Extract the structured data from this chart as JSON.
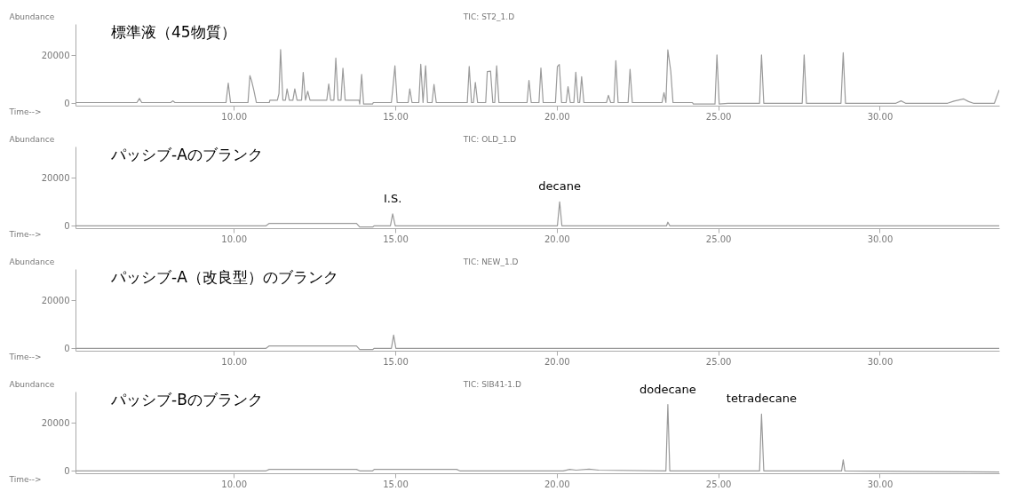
{
  "chart_data": [
    {
      "type": "line",
      "title": "標準液（45物質）",
      "subtitle": "TIC: ST2_1.D",
      "xlabel": "Time-->",
      "ylabel": "Abundance",
      "series": [
        {
          "color": "#9a9a9a",
          "x": [
            5.1,
            7.0,
            7.08,
            7.15,
            8.05,
            8.11,
            8.18,
            9.76,
            9.83,
            9.9,
            10.44,
            10.5,
            10.55,
            10.62,
            10.7,
            11.1,
            11.12,
            11.35,
            11.4,
            11.45,
            11.52,
            11.6,
            11.65,
            11.72,
            11.83,
            11.89,
            11.96,
            12.1,
            12.15,
            12.22,
            12.29,
            12.36,
            12.88,
            12.94,
            13.0,
            13.1,
            13.16,
            13.23,
            13.32,
            13.38,
            13.45,
            13.88,
            13.9,
            13.96,
            14.02,
            14.3,
            14.32,
            14.88,
            14.92,
            14.99,
            15.06,
            15.4,
            15.45,
            15.52,
            15.73,
            15.79,
            15.86,
            15.94,
            16.0,
            16.14,
            16.2,
            16.27,
            17.23,
            17.29,
            17.36,
            17.42,
            17.48,
            17.55,
            17.8,
            17.85,
            17.95,
            18.02,
            18.08,
            18.14,
            18.21,
            19.08,
            19.14,
            19.21,
            19.45,
            19.51,
            19.58,
            19.96,
            20.02,
            20.08,
            20.15,
            20.29,
            20.35,
            20.42,
            20.53,
            20.59,
            20.66,
            20.71,
            20.77,
            20.84,
            21.54,
            21.6,
            21.67,
            21.77,
            21.83,
            21.9,
            22.21,
            22.27,
            22.34,
            23.26,
            23.32,
            23.38,
            23.44,
            23.53,
            23.6,
            24.2,
            24.23,
            24.9,
            24.96,
            25.03,
            25.3,
            26.28,
            26.34,
            26.41,
            27.6,
            27.66,
            27.73,
            28.8,
            28.87,
            28.94,
            30.5,
            30.66,
            30.8,
            32.1,
            32.3,
            32.6,
            32.75,
            32.9,
            33.55,
            33.7
          ],
          "values": [
            300,
            300,
            2000,
            300,
            300,
            1000,
            300,
            300,
            8400,
            300,
            300,
            11500,
            9500,
            5500,
            300,
            300,
            1300,
            1300,
            4000,
            22300,
            1300,
            1300,
            6000,
            1300,
            1300,
            6000,
            1300,
            1300,
            12800,
            1300,
            5000,
            1300,
            1300,
            8000,
            1300,
            1300,
            18800,
            1300,
            1300,
            14600,
            1300,
            1300,
            -300,
            12000,
            -300,
            -300,
            300,
            300,
            5500,
            15600,
            300,
            300,
            6000,
            300,
            300,
            16200,
            300,
            15600,
            300,
            300,
            7800,
            300,
            300,
            15300,
            300,
            300,
            8700,
            300,
            300,
            13200,
            13400,
            300,
            300,
            15600,
            300,
            300,
            9500,
            300,
            300,
            14700,
            300,
            300,
            15300,
            16100,
            300,
            300,
            6900,
            300,
            300,
            12900,
            300,
            300,
            11100,
            300,
            300,
            3300,
            300,
            300,
            17700,
            300,
            300,
            14100,
            300,
            300,
            4400,
            300,
            22200,
            13400,
            300,
            300,
            -300,
            -300,
            20100,
            -300,
            0,
            0,
            20100,
            0,
            0,
            20100,
            0,
            0,
            21000,
            0,
            0,
            1000,
            0,
            0,
            900,
            1800,
            700,
            0,
            0,
            5600
          ]
        }
      ],
      "xlim": [
        5.1,
        33.7
      ],
      "ylim": [
        -1000,
        33000
      ],
      "yticks": [
        0,
        20000
      ],
      "xticks": [
        {
          "value": 10,
          "label": "10.00"
        },
        {
          "value": 15,
          "label": "15.00"
        },
        {
          "value": 20,
          "label": "20.00"
        },
        {
          "value": 25,
          "label": "25.00"
        },
        {
          "value": 30,
          "label": "30.00"
        }
      ]
    },
    {
      "type": "line",
      "title": "パッシブ-Aのブランク",
      "subtitle": "TIC: OLD_1.D",
      "xlabel": "Time-->",
      "ylabel": "Abundance",
      "series": [
        {
          "color": "#9a9a9a",
          "x": [
            5.1,
            11.0,
            11.1,
            13.8,
            13.9,
            14.3,
            14.35,
            14.85,
            14.92,
            15.0,
            20.02,
            20.09,
            20.16,
            23.4,
            23.44,
            23.5,
            33.7
          ],
          "values": [
            0,
            0,
            1000,
            1000,
            -500,
            -500,
            0,
            0,
            5000,
            0,
            0,
            10000,
            0,
            0,
            1500,
            0,
            0
          ]
        }
      ],
      "annotations": [
        {
          "text": "I.S.",
          "x": 14.92,
          "y": 5000
        },
        {
          "text": "decane",
          "x": 20.09,
          "y": 10000
        }
      ],
      "xlim": [
        5.1,
        33.7
      ],
      "ylim": [
        -1000,
        33000
      ],
      "yticks": [
        0,
        20000
      ],
      "xticks": [
        {
          "value": 10,
          "label": "10.00"
        },
        {
          "value": 15,
          "label": "15.00"
        },
        {
          "value": 20,
          "label": "20.00"
        },
        {
          "value": 25,
          "label": "25.00"
        },
        {
          "value": 30,
          "label": "30.00"
        }
      ]
    },
    {
      "type": "line",
      "title": "パッシブ-A（改良型）のブランク",
      "subtitle": "TIC: NEW_1.D",
      "xlabel": "Time-->",
      "ylabel": "Abundance",
      "series": [
        {
          "color": "#9a9a9a",
          "x": [
            5.1,
            11.0,
            11.1,
            13.8,
            13.9,
            14.3,
            14.35,
            14.88,
            14.95,
            15.02,
            33.7
          ],
          "values": [
            0,
            0,
            1000,
            1000,
            -500,
            -500,
            0,
            0,
            5500,
            0,
            0
          ]
        }
      ],
      "xlim": [
        5.1,
        33.7
      ],
      "ylim": [
        -1000,
        33000
      ],
      "yticks": [
        0,
        20000
      ],
      "xticks": [
        {
          "value": 10,
          "label": "10.00"
        },
        {
          "value": 15,
          "label": "15.00"
        },
        {
          "value": 20,
          "label": "20.00"
        },
        {
          "value": 25,
          "label": "25.00"
        },
        {
          "value": 30,
          "label": "30.00"
        }
      ]
    },
    {
      "type": "line",
      "title": "パッシブ-Bのブランク",
      "subtitle": "TIC: SIB41-1.D",
      "xlabel": "Time-->",
      "ylabel": "Abundance",
      "series": [
        {
          "color": "#9a9a9a",
          "x": [
            5.1,
            11.0,
            11.1,
            13.8,
            13.9,
            14.3,
            14.35,
            16.9,
            17.0,
            20.2,
            20.4,
            20.6,
            21.0,
            21.3,
            23.38,
            23.44,
            23.5,
            26.28,
            26.34,
            26.41,
            28.82,
            28.87,
            28.92,
            33.7
          ],
          "values": [
            0,
            0,
            600,
            600,
            0,
            0,
            600,
            600,
            0,
            0,
            600,
            300,
            700,
            300,
            0,
            27600,
            0,
            0,
            23600,
            0,
            0,
            4600,
            0,
            -500
          ]
        }
      ],
      "annotations": [
        {
          "text": "dodecane",
          "x": 23.44,
          "y": 27600
        },
        {
          "text": "tetradecane",
          "x": 26.34,
          "y": 23600
        }
      ],
      "xlim": [
        5.1,
        33.7
      ],
      "ylim": [
        -1000,
        33000
      ],
      "yticks": [
        0,
        20000
      ],
      "xticks": [
        {
          "value": 10,
          "label": "10.00"
        },
        {
          "value": 15,
          "label": "15.00"
        },
        {
          "value": 20,
          "label": "20.00"
        },
        {
          "value": 25,
          "label": "25.00"
        },
        {
          "value": 30,
          "label": "30.00"
        }
      ]
    }
  ]
}
